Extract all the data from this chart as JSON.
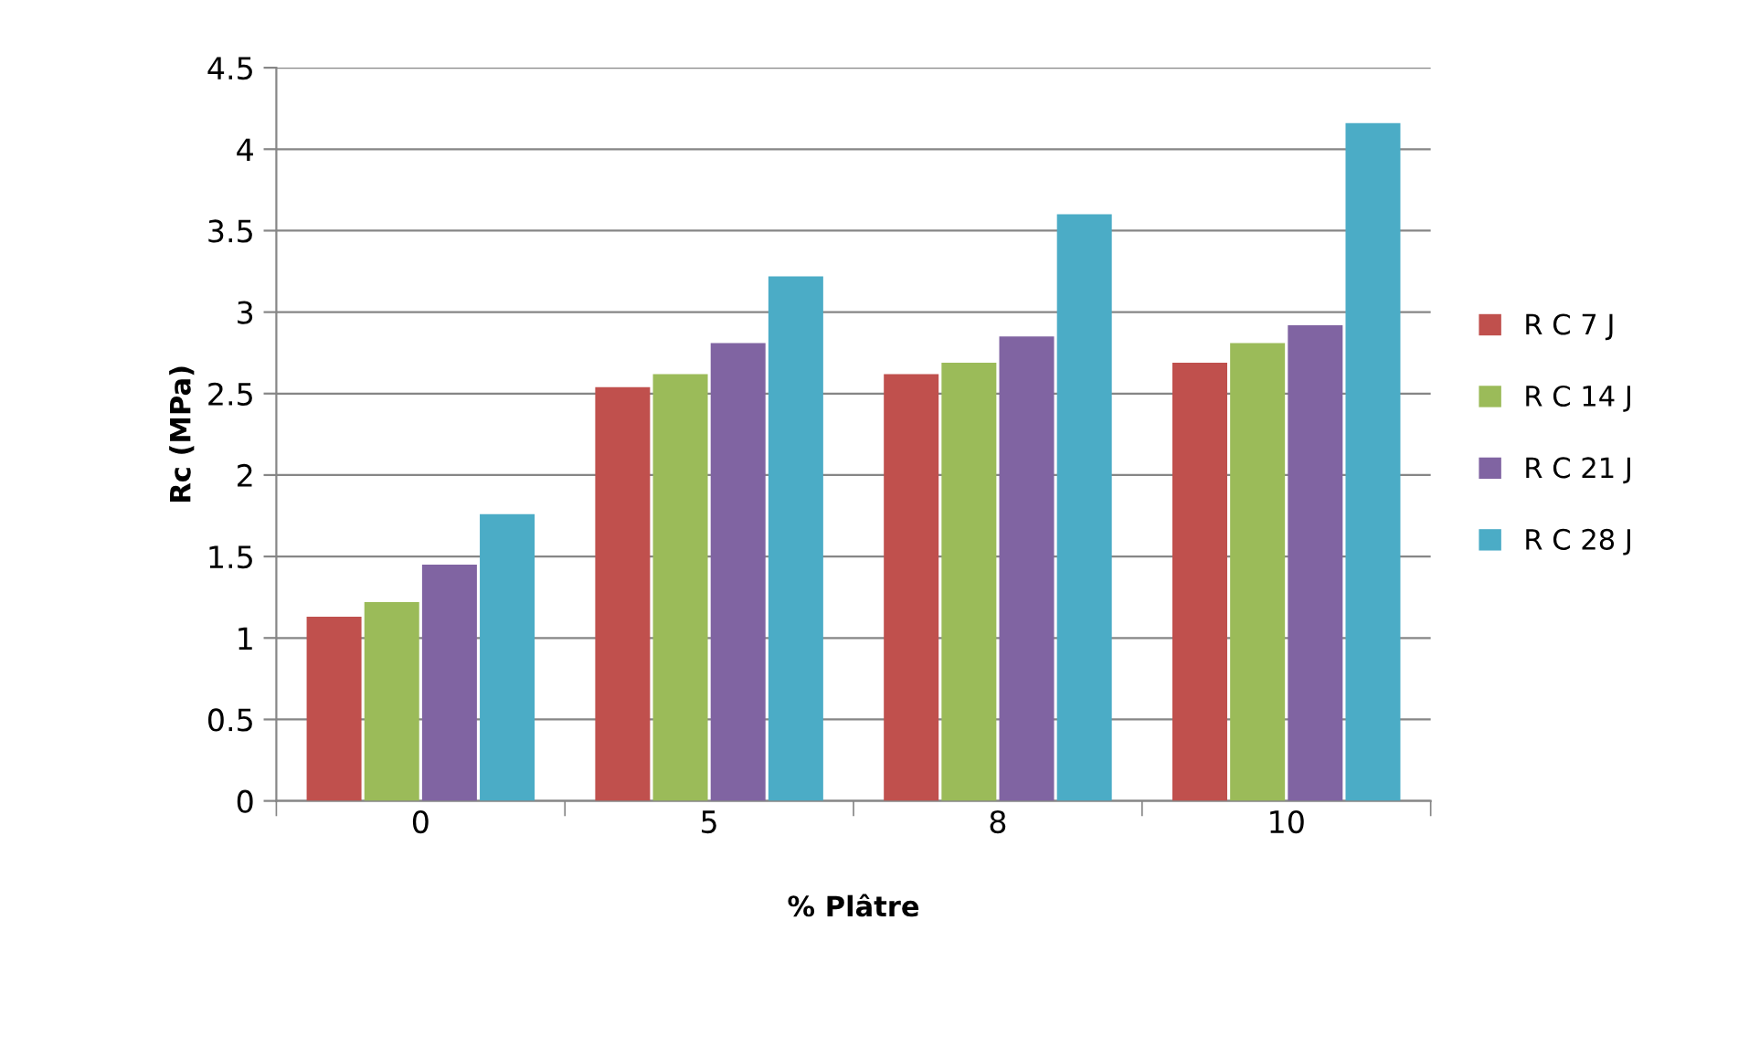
{
  "chart_data": {
    "type": "bar",
    "xlabel": "% Plâtre",
    "ylabel": "Rc (MPa)",
    "categories": [
      "0",
      "5",
      "8",
      "10"
    ],
    "series": [
      {
        "name": "R C 7 J",
        "color": "#c0504d",
        "values": [
          1.13,
          2.54,
          2.62,
          2.69
        ]
      },
      {
        "name": "R C 14 J",
        "color": "#9bbb59",
        "values": [
          1.22,
          2.62,
          2.69,
          2.81
        ]
      },
      {
        "name": "R C 21 J",
        "color": "#8064a2",
        "values": [
          1.45,
          2.81,
          2.85,
          2.92
        ]
      },
      {
        "name": "R C 28 J",
        "color": "#4bacc6",
        "values": [
          1.76,
          3.22,
          3.6,
          4.16
        ]
      }
    ],
    "ylim": [
      0,
      4.5
    ],
    "yticks": [
      0,
      0.5,
      1,
      1.5,
      2,
      2.5,
      3,
      3.5,
      4,
      4.5
    ],
    "grid": "y",
    "legend": "right"
  }
}
